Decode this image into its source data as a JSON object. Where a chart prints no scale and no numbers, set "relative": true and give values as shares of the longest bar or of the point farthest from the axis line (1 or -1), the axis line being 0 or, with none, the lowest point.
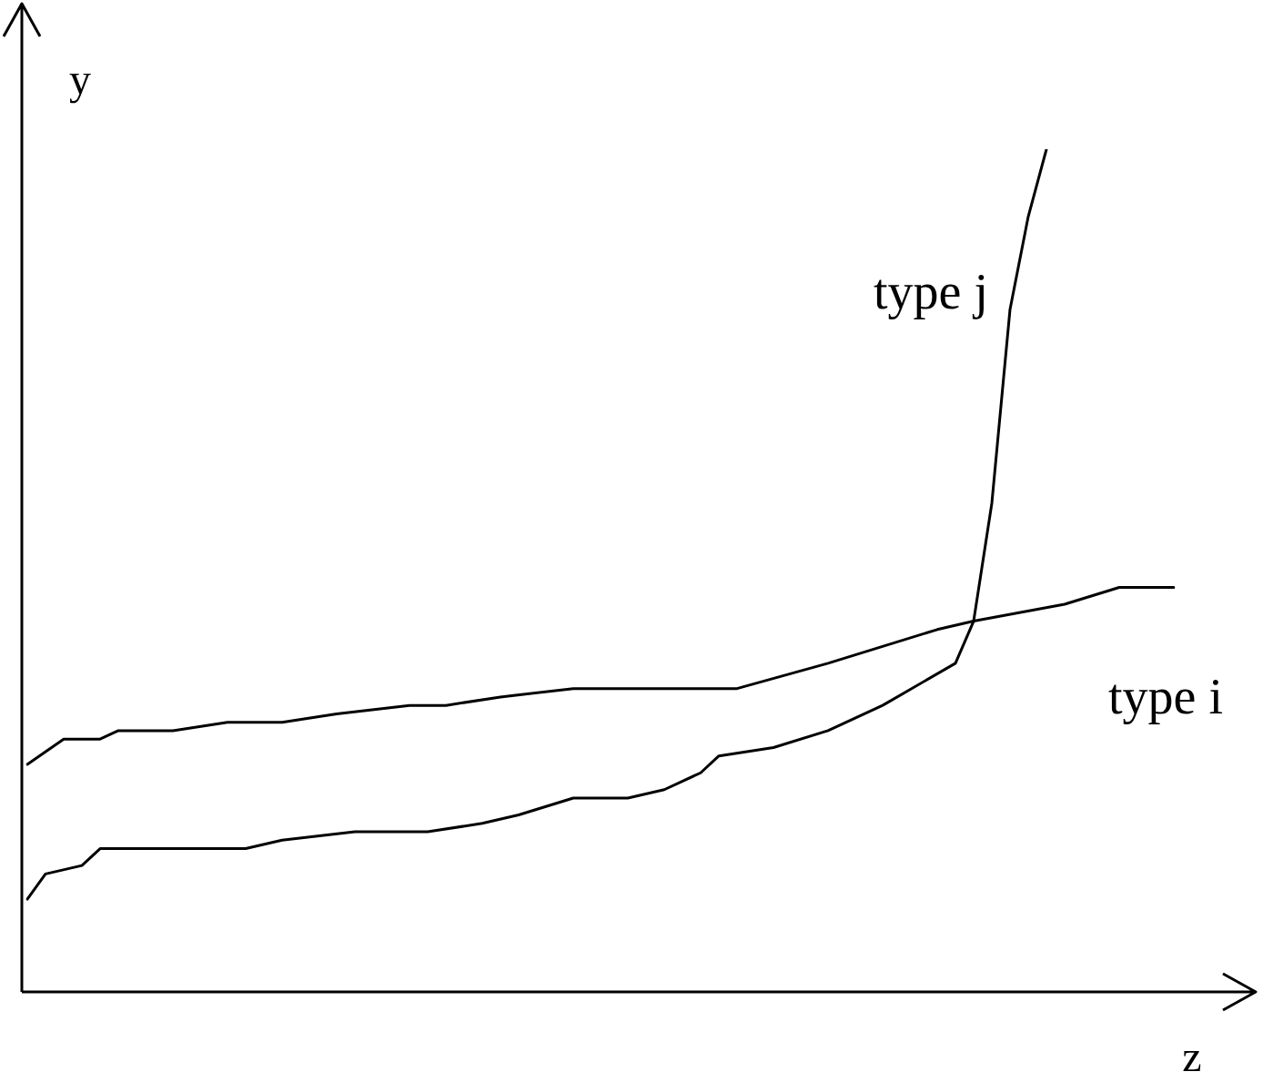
{
  "chart_data": {
    "type": "line",
    "relative": true,
    "xlabel": "z",
    "ylabel": "y",
    "legend": false,
    "categories": [
      null,
      null,
      null,
      null,
      null,
      null,
      null,
      null,
      null,
      null,
      null,
      null,
      null,
      null,
      null,
      null,
      null,
      null,
      null,
      null,
      null,
      null,
      null,
      null,
      null,
      null,
      null,
      null,
      null,
      null,
      null,
      null,
      null,
      null,
      null,
      null,
      null,
      null,
      null,
      null,
      null,
      null,
      null,
      null,
      null,
      null,
      null,
      null,
      null,
      null,
      null,
      null,
      null,
      null,
      null,
      null,
      null,
      null,
      null,
      null,
      null,
      null,
      null,
      null
    ],
    "series": [
      {
        "name": "type i",
        "color": "#000000",
        "values": [
          0.27,
          null,
          0.3,
          null,
          0.3,
          0.31,
          null,
          null,
          0.31,
          null,
          null,
          0.32,
          null,
          null,
          0.32,
          null,
          null,
          0.33,
          null,
          null,
          null,
          0.34,
          null,
          0.34,
          null,
          null,
          0.35,
          null,
          null,
          null,
          0.36,
          null,
          null,
          null,
          null,
          null,
          null,
          null,
          0.36,
          0.36,
          null,
          null,
          null,
          null,
          0.39,
          null,
          null,
          null,
          null,
          null,
          0.43,
          null,
          0.44,
          null,
          null,
          null,
          null,
          0.46,
          null,
          null,
          0.48,
          null,
          null,
          0.48
        ]
      },
      {
        "name": "type j",
        "color": "#000000",
        "values": [
          0.11,
          0.14,
          null,
          0.15,
          0.17,
          null,
          null,
          0.17,
          null,
          0.17,
          null,
          null,
          0.17,
          null,
          0.18,
          null,
          null,
          null,
          0.19,
          null,
          0.19,
          null,
          0.19,
          null,
          null,
          0.2,
          null,
          0.21,
          null,
          null,
          0.23,
          null,
          null,
          0.23,
          null,
          0.24,
          null,
          0.26,
          0.28,
          null,
          null,
          0.29,
          null,
          null,
          0.31,
          null,
          0.33,
          0.34,
          null,
          null,
          null,
          0.39,
          0.44,
          0.58,
          0.81,
          0.92,
          1,
          null,
          null,
          null,
          null,
          null,
          null,
          null
        ]
      }
    ]
  }
}
